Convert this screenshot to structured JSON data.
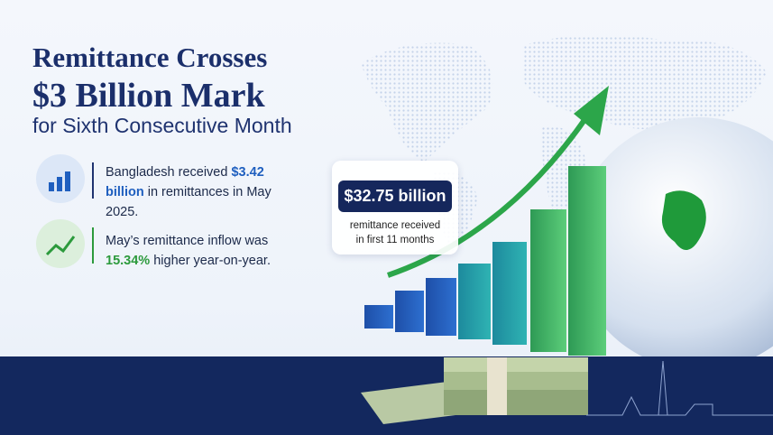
{
  "header": {
    "line1": "Remittance Crosses",
    "line2": "$3 Billion Mark",
    "line3": "for Sixth Consecutive Month"
  },
  "stats": [
    {
      "before": "Bangladesh received ",
      "highlight": "$3.42 billion",
      "after": " in remittances in May 2025."
    },
    {
      "before": "May’s remittance inflow was ",
      "highlight": "15.34%",
      "after": " higher year-on-year."
    }
  ],
  "callout": {
    "value": "$32.75 billion",
    "caption": "remittance received in first 11 months"
  }
}
